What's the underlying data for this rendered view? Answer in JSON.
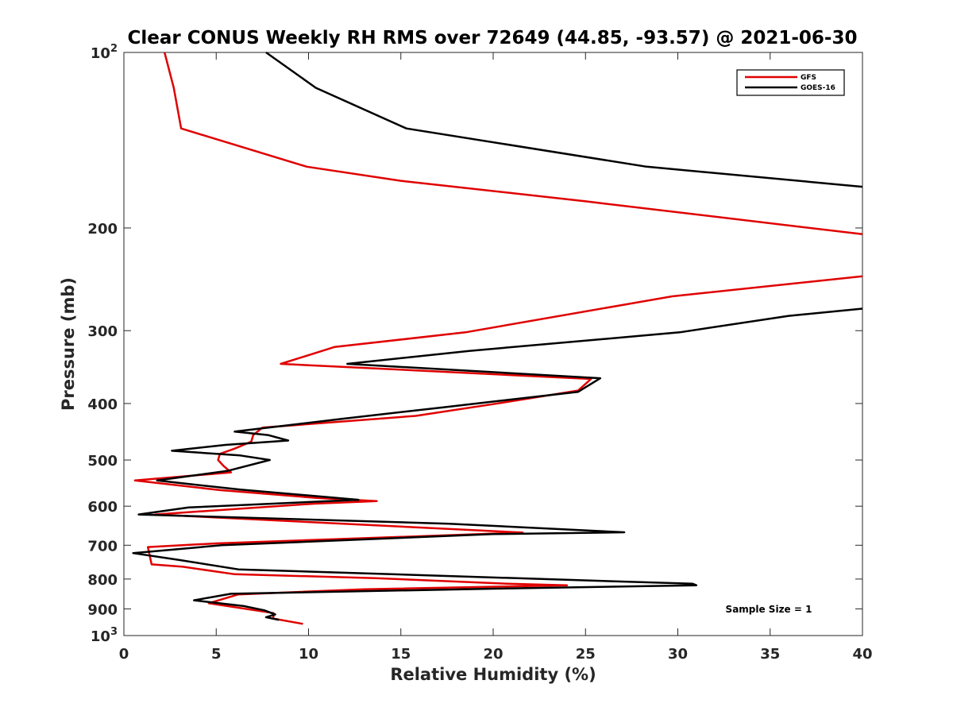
{
  "chart_data": {
    "type": "line",
    "title": "Clear CONUS Weekly RH RMS over 72649 (44.85, -93.57) @ 2021-06-30",
    "xlabel": "Relative Humidity (%)",
    "ylabel": "Pressure (mb)",
    "xlim": [
      0,
      40
    ],
    "ylim": [
      100,
      1000
    ],
    "y_scale": "log",
    "y_reversed": true,
    "x_ticks": [
      0,
      5,
      10,
      15,
      20,
      25,
      30,
      35,
      40
    ],
    "y_ticks": [
      {
        "value": 100,
        "base": "10",
        "exp": "2"
      },
      {
        "value": 200,
        "label": "200"
      },
      {
        "value": 300,
        "label": "300"
      },
      {
        "value": 400,
        "label": "400"
      },
      {
        "value": 500,
        "label": "500"
      },
      {
        "value": 600,
        "label": "600"
      },
      {
        "value": 700,
        "label": "700"
      },
      {
        "value": 800,
        "label": "800"
      },
      {
        "value": 900,
        "label": "900"
      },
      {
        "value": 1000,
        "base": "10",
        "exp": "3"
      }
    ],
    "grid": false,
    "legend_position": "top-right",
    "annotation": "Sample Size = 1",
    "series": [
      {
        "name": "GFS",
        "color": "#e00000",
        "points": [
          [
            2.2,
            100
          ],
          [
            2.7,
            115
          ],
          [
            3.1,
            135
          ],
          [
            9.9,
            157
          ],
          [
            15,
            166
          ],
          [
            25,
            180
          ],
          [
            40,
            205
          ],
          [
            null,
            null
          ],
          [
            40,
            242
          ],
          [
            29.7,
            262
          ],
          [
            18.5,
            302
          ],
          [
            11.4,
            320
          ],
          [
            8.5,
            342
          ],
          [
            25.3,
            363
          ],
          [
            24.6,
            380
          ],
          [
            20,
            401
          ],
          [
            15.8,
            420
          ],
          [
            7.5,
            440
          ],
          [
            7,
            453
          ],
          [
            6.9,
            465
          ],
          [
            6,
            478
          ],
          [
            5.2,
            488
          ],
          [
            5.1,
            500
          ],
          [
            5.4,
            512
          ],
          [
            5.8,
            525
          ],
          [
            0.6,
            542
          ],
          [
            5.2,
            563
          ],
          [
            10.5,
            581
          ],
          [
            13.7,
            588
          ],
          [
            10.3,
            594
          ],
          [
            1.7,
            620
          ],
          [
            21.6,
            666
          ],
          [
            5,
            695
          ],
          [
            1.3,
            705
          ],
          [
            1.5,
            755
          ],
          [
            3.2,
            762
          ],
          [
            6,
            785
          ],
          [
            13.6,
            797
          ],
          [
            20.8,
            815
          ],
          [
            24,
            820
          ],
          [
            13,
            833
          ],
          [
            6.2,
            850
          ],
          [
            4.6,
            880
          ],
          [
            8.1,
            915
          ],
          [
            8.1,
            935
          ],
          [
            9.7,
            955
          ]
        ]
      },
      {
        "name": "GOES-16",
        "color": "#000000",
        "points": [
          [
            7.7,
            100
          ],
          [
            10.4,
            115
          ],
          [
            15.3,
            135
          ],
          [
            28.3,
            157
          ],
          [
            40,
            170
          ],
          [
            null,
            null
          ],
          [
            40,
            275
          ],
          [
            36,
            283
          ],
          [
            30.1,
            302
          ],
          [
            18.7,
            325
          ],
          [
            12.1,
            342
          ],
          [
            25.8,
            362
          ],
          [
            24.6,
            382
          ],
          [
            17.3,
            406
          ],
          [
            11.8,
            425
          ],
          [
            6,
            447
          ],
          [
            7.8,
            453
          ],
          [
            8.9,
            463
          ],
          [
            5.5,
            471
          ],
          [
            2.6,
            482
          ],
          [
            6.3,
            491
          ],
          [
            7.9,
            500
          ],
          [
            5.6,
            522
          ],
          [
            1.8,
            542
          ],
          [
            6.3,
            562
          ],
          [
            12.7,
            585
          ],
          [
            3.5,
            603
          ],
          [
            0.8,
            620
          ],
          [
            17.6,
            643
          ],
          [
            27.1,
            665
          ],
          [
            20,
            670
          ],
          [
            5.3,
            700
          ],
          [
            0.5,
            722
          ],
          [
            3,
            742
          ],
          [
            6.2,
            770
          ],
          [
            30.8,
            815
          ],
          [
            31,
            820
          ],
          [
            20,
            831
          ],
          [
            5.8,
            848
          ],
          [
            3.8,
            870
          ],
          [
            6.5,
            890
          ],
          [
            7.6,
            905
          ],
          [
            8.2,
            920
          ],
          [
            7.7,
            930
          ],
          [
            8.4,
            940
          ]
        ]
      }
    ]
  }
}
